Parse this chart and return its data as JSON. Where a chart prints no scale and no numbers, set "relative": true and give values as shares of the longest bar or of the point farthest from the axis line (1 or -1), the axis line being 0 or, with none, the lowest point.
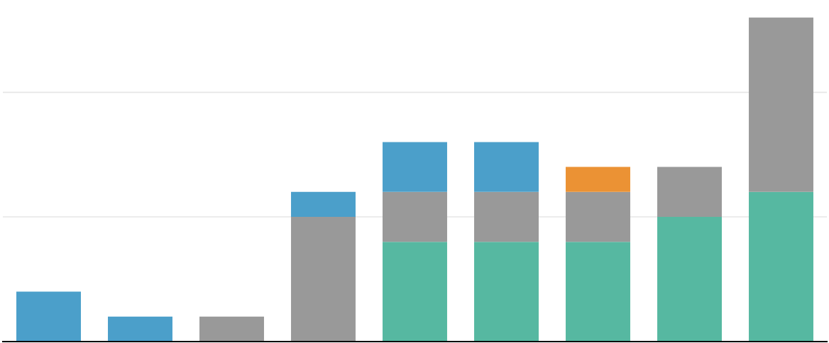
{
  "chart_data": {
    "type": "bar",
    "relative": true,
    "stacked": true,
    "legend": false,
    "ref_lines": [
      {
        "axis": "y",
        "value": 0.385,
        "color": "#e6e6e6"
      },
      {
        "axis": "y",
        "value": 0.769,
        "color": "#e6e6e6"
      }
    ],
    "categories": [
      null,
      null,
      null,
      null,
      null,
      null,
      null,
      null,
      null
    ],
    "series": [
      {
        "color": "#56b8a1",
        "values": [
          0,
          0,
          0,
          0,
          0.308,
          0.308,
          0.308,
          0.385,
          0.462
        ]
      },
      {
        "color": "#999999",
        "values": [
          0,
          0,
          0.077,
          0.385,
          0.154,
          0.154,
          0.154,
          0.154,
          0.538
        ]
      },
      {
        "color": "#4b9fca",
        "values": [
          0.154,
          0.077,
          0,
          0.077,
          0.154,
          0.154,
          0,
          0,
          0
        ]
      },
      {
        "color": "#eb9234",
        "values": [
          0,
          0,
          0,
          0,
          0,
          0,
          0.077,
          0,
          0
        ]
      }
    ]
  }
}
